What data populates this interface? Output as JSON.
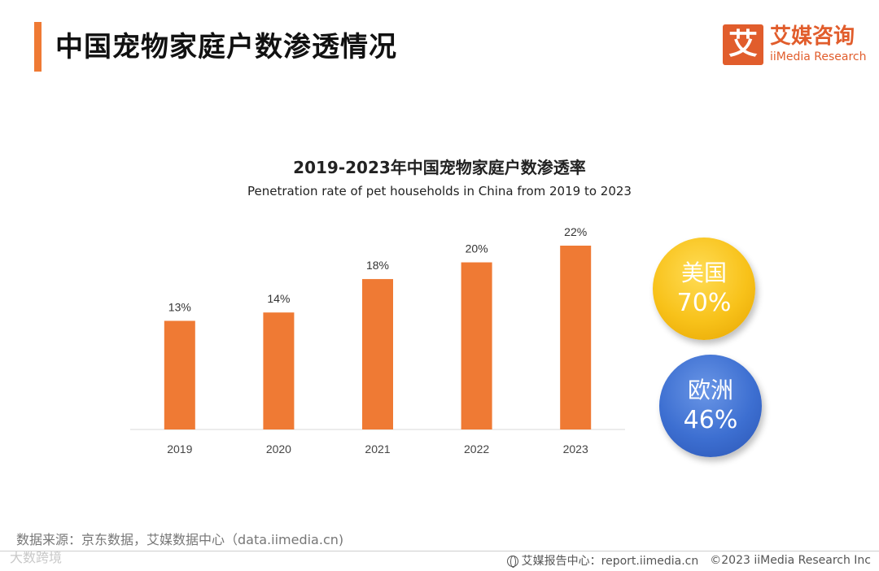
{
  "header": {
    "title": "中国宠物家庭户数渗透情况",
    "accent_color": "#ef7a34"
  },
  "logo": {
    "mark": "艾",
    "name_cn": "艾媒咨询",
    "name_en": "iiMedia Research",
    "color": "#e15d2c"
  },
  "chart_data": {
    "type": "bar",
    "title": "2019-2023年中国宠物家庭户数渗透率",
    "subtitle": "Penetration rate of pet households in China from 2019 to 2023",
    "categories": [
      "2019",
      "2020",
      "2021",
      "2022",
      "2023"
    ],
    "values": [
      13,
      14,
      18,
      20,
      22
    ],
    "value_labels": [
      "13%",
      "14%",
      "18%",
      "20%",
      "22%"
    ],
    "unit": "%",
    "bar_color": "#ef7a34",
    "ylim": [
      0,
      22
    ],
    "grid": false,
    "xlabel": "",
    "ylabel": ""
  },
  "comparisons": [
    {
      "label": "美国",
      "value": "70%",
      "color": "#f8c21a"
    },
    {
      "label": "欧洲",
      "value": "46%",
      "color": "#3d6fd1"
    }
  ],
  "footer": {
    "source": "数据来源：京东数据，艾媒数据中心（data.iimedia.cn)",
    "report_center": "艾媒报告中心：report.iimedia.cn",
    "copyright": "©2023  iiMedia Research  Inc",
    "watermark": "大数跨境"
  }
}
